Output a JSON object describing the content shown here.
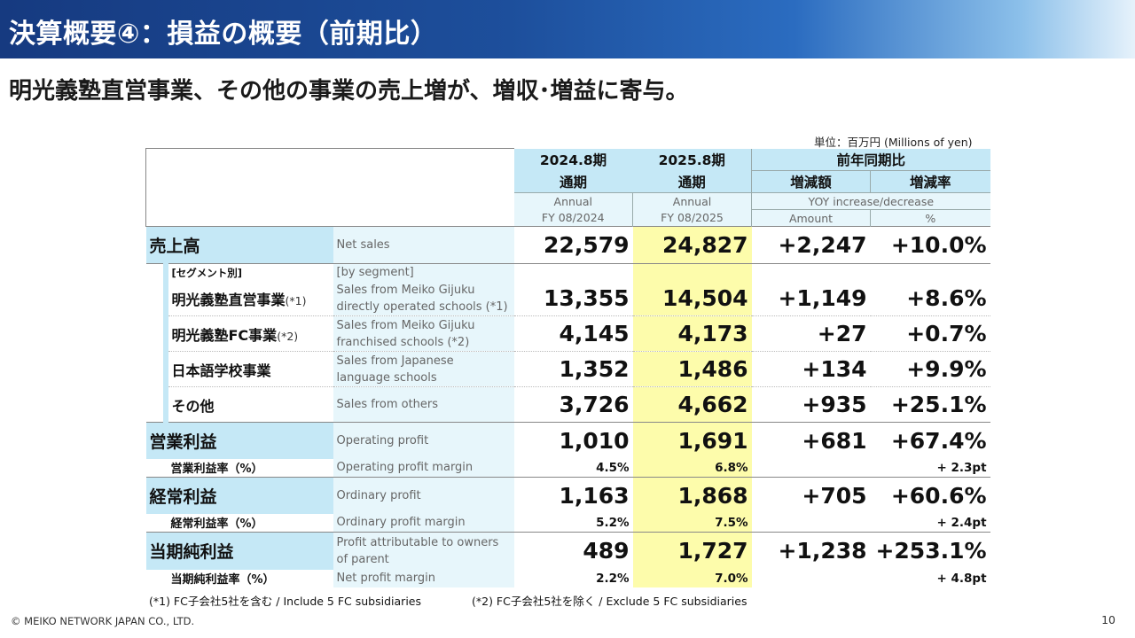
{
  "header": {
    "title": "決算概要④：損益の概要（前期比）",
    "subtitle": "明光義塾直営事業、その他の事業の売上増が、増収･増益に寄与。"
  },
  "unit": "単位：百万円 (Millions of yen)",
  "table": {
    "columns": {
      "prev_period": "2024.8期",
      "prev_annual_jp": "通期",
      "prev_annual_en": "Annual",
      "prev_fy": "FY 08/2024",
      "curr_period": "2025.8期",
      "curr_annual_jp": "通期",
      "curr_annual_en": "Annual",
      "curr_fy": "FY 08/2025",
      "yoy_group": "前年同期比",
      "yoy_amount_jp": "増減額",
      "yoy_rate_jp": "増減率",
      "yoy_en": "YOY increase/decrease",
      "yoy_amount_en": "Amount",
      "yoy_rate_en": "%"
    },
    "net_sales": {
      "label": "売上高",
      "label_en": "Net sales",
      "prev": "22,579",
      "curr": "24,827",
      "amount": "+2,247",
      "rate": "+10.0%"
    },
    "segment_header": {
      "label": "[セグメント別]",
      "label_en": "[by segment]"
    },
    "segments": [
      {
        "label": "明光義塾直営事業",
        "note": "(*1)",
        "label_en": "Sales from Meiko Gijuku directly operated schools (*1)",
        "prev": "13,355",
        "curr": "14,504",
        "amount": "+1,149",
        "rate": "+8.6%"
      },
      {
        "label": "明光義塾FC事業",
        "note": "(*2)",
        "label_en": "Sales from Meiko Gijuku franchised schools (*2)",
        "prev": "4,145",
        "curr": "4,173",
        "amount": "+27",
        "rate": "+0.7%"
      },
      {
        "label": "日本語学校事業",
        "note": "",
        "label_en": "Sales from Japanese language schools",
        "prev": "1,352",
        "curr": "1,486",
        "amount": "+134",
        "rate": "+9.9%"
      },
      {
        "label": "その他",
        "note": "",
        "label_en": "Sales from others",
        "prev": "3,726",
        "curr": "4,662",
        "amount": "+935",
        "rate": "+25.1%"
      }
    ],
    "operating_profit": {
      "label": "営業利益",
      "label_en": "Operating profit",
      "prev": "1,010",
      "curr": "1,691",
      "amount": "+681",
      "rate": "+67.4%"
    },
    "operating_margin": {
      "label": "営業利益率（%）",
      "label_en": "Operating profit margin",
      "prev": "4.5%",
      "curr": "6.8%",
      "rate": "+ 2.3pt"
    },
    "ordinary_profit": {
      "label": "経常利益",
      "label_en": "Ordinary profit",
      "prev": "1,163",
      "curr": "1,868",
      "amount": "+705",
      "rate": "+60.6%"
    },
    "ordinary_margin": {
      "label": "経常利益率（%）",
      "label_en": "Ordinary profit margin",
      "prev": "5.2%",
      "curr": "7.5%",
      "rate": "+ 2.4pt"
    },
    "net_profit": {
      "label": "当期純利益",
      "label_en": "Profit attributable to owners of parent",
      "prev": "489",
      "curr": "1,727",
      "amount": "+1,238",
      "rate": "+253.1%"
    },
    "net_margin": {
      "label": "当期純利益率（%）",
      "label_en": "Net profit margin",
      "prev": "2.2%",
      "curr": "7.0%",
      "rate": "+ 4.8pt"
    }
  },
  "footnotes": {
    "note1": "(*1) FC子会社5社を含む / Include 5 FC subsidiaries",
    "note2": "(*2) FC子会社5社を除く / Exclude 5 FC subsidiaries"
  },
  "footer": {
    "copyright": "© MEIKO NETWORK JAPAN CO., LTD.",
    "page": "10"
  }
}
